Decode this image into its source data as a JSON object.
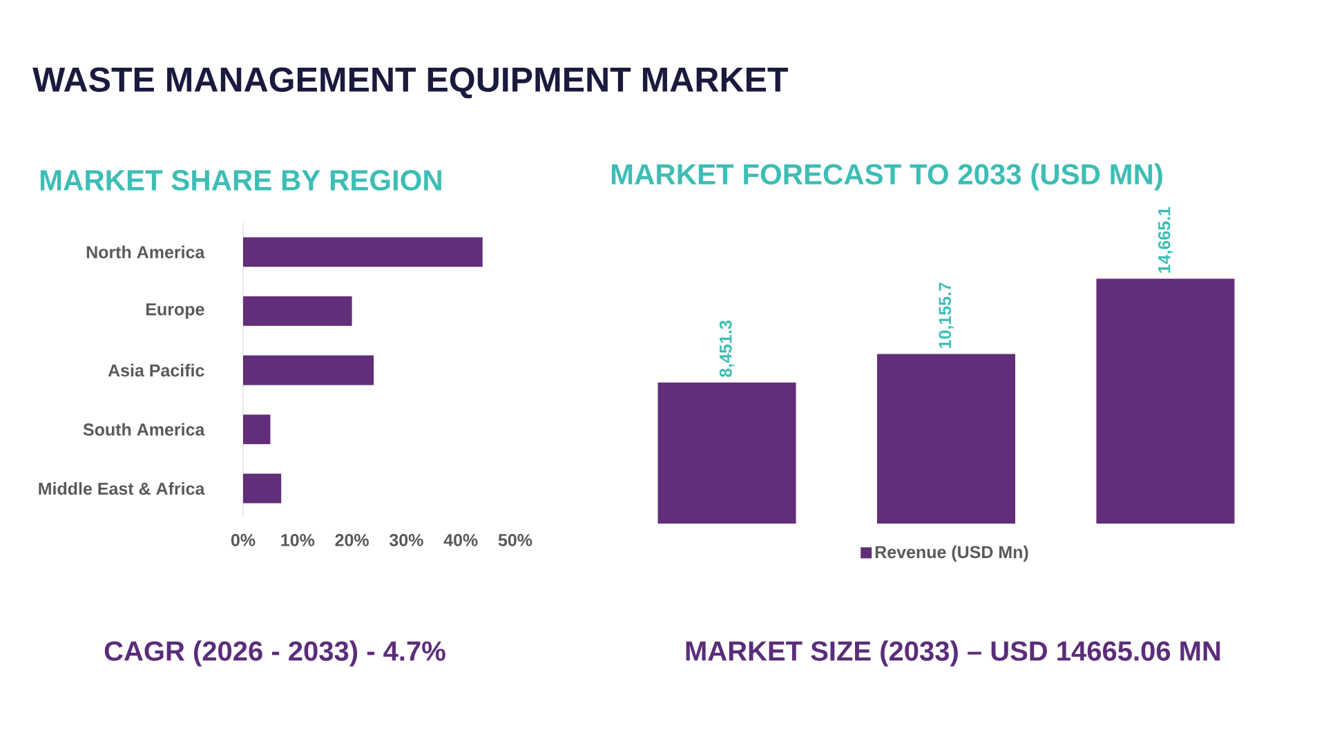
{
  "chart_data": [
    {
      "type": "other",
      "title": "WASTE MANAGEMENT EQUIPMENT MARKET"
    },
    {
      "type": "bar",
      "orientation": "horizontal",
      "title": "MARKET SHARE BY REGION",
      "categories": [
        "North America",
        "Europe",
        "Asia Pacific",
        "South America",
        "Middle East & Africa"
      ],
      "values": [
        44,
        20,
        24,
        5,
        7
      ],
      "color": "#622d79",
      "xlim": [
        0,
        50
      ],
      "xticks": [
        {
          "value": 0,
          "label": "0%"
        },
        {
          "value": 10,
          "label": "10%"
        },
        {
          "value": 20,
          "label": "20%"
        },
        {
          "value": 30,
          "label": "30%"
        },
        {
          "value": 40,
          "label": "40%"
        },
        {
          "value": 50,
          "label": "50%"
        }
      ],
      "annotations": [
        "CAGR (2026 - 2033) - 4.7%"
      ]
    },
    {
      "type": "bar",
      "title": "MARKET FORECAST TO 2033 (USD MN)",
      "categories": [
        null,
        null,
        null
      ],
      "series": [
        {
          "name": "Revenue (USD Mn)",
          "color": "#622d79",
          "values": [
            8451.3,
            10155.7,
            14665.1
          ],
          "value_labels": [
            "8,451.3",
            "10,155.7",
            "14,665.1"
          ]
        }
      ],
      "legend": "bottom",
      "annotations": [
        "MARKET SIZE (2033) – USD 14665.06 MN"
      ]
    }
  ]
}
